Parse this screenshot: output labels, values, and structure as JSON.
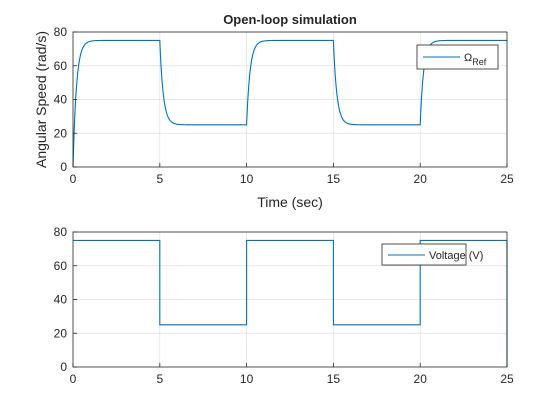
{
  "figure": {
    "background": "#ffffff",
    "line_color": "#0072bd",
    "axis_color": "#262626",
    "grid_color": "#dfdfdf"
  },
  "chart_data": [
    {
      "type": "line",
      "title": "Open-loop simulation",
      "xlabel": "Time (sec)",
      "ylabel": "Angular Speed (rad/s)",
      "xlim": [
        0,
        25
      ],
      "ylim": [
        0,
        80
      ],
      "xticks": [
        0,
        5,
        10,
        15,
        20,
        25
      ],
      "yticks": [
        0,
        20,
        40,
        60,
        80
      ],
      "grid": true,
      "legend": {
        "position": "top-right",
        "entries": [
          "Ω_Ref"
        ],
        "symbol": "Ω",
        "subscript": "Ref"
      },
      "series": [
        {
          "name": "Ω_Ref",
          "kind": "first-order-response",
          "initial": 0,
          "time_constant_s": 0.2,
          "steps": [
            {
              "t": 0,
              "level": 75
            },
            {
              "t": 5,
              "level": 25
            },
            {
              "t": 10,
              "level": 75
            },
            {
              "t": 15,
              "level": 25
            },
            {
              "t": 20,
              "level": 75
            }
          ],
          "t_end": 25
        }
      ]
    },
    {
      "type": "line",
      "title": "",
      "xlabel": "",
      "ylabel": "",
      "xlim": [
        0,
        25
      ],
      "ylim": [
        0,
        80
      ],
      "xticks": [
        0,
        5,
        10,
        15,
        20,
        25
      ],
      "yticks": [
        0,
        20,
        40,
        60,
        80
      ],
      "grid": true,
      "legend": {
        "position": "top-right",
        "entries": [
          "Voltage (V)"
        ]
      },
      "series": [
        {
          "name": "Voltage (V)",
          "kind": "step",
          "x": [
            0,
            5,
            5,
            10,
            10,
            15,
            15,
            20,
            20,
            25,
            25
          ],
          "y": [
            75,
            75,
            25,
            25,
            75,
            75,
            25,
            25,
            75,
            75,
            0
          ]
        }
      ]
    }
  ]
}
